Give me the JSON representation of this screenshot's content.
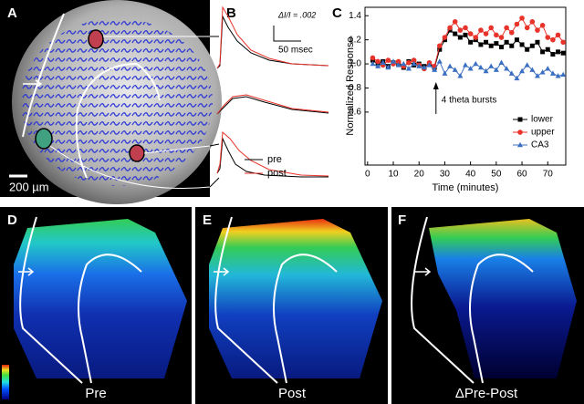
{
  "panels": {
    "a": {
      "label": "A",
      "scale_bar": "200 µm"
    },
    "b": {
      "label": "B",
      "amplitude_scale": "ΔI/I = .002",
      "time_scale": "50 msec",
      "legend": [
        "pre",
        "post"
      ]
    },
    "c": {
      "label": "C"
    },
    "d": {
      "label": "D",
      "caption": "Pre"
    },
    "e": {
      "label": "E",
      "caption": "Post"
    },
    "f": {
      "label": "F",
      "caption": "ΔPre-Post"
    }
  },
  "chart_data": {
    "type": "line",
    "xlabel": "Time (minutes)",
    "ylabel": "Normalized Response",
    "annotation": "4 theta bursts",
    "x": [
      2,
      4,
      6,
      8,
      10,
      12,
      14,
      16,
      18,
      20,
      22,
      24,
      26,
      28,
      30,
      32,
      34,
      36,
      38,
      40,
      42,
      44,
      46,
      48,
      50,
      52,
      54,
      56,
      58,
      60,
      62,
      64,
      66,
      68,
      70,
      72,
      74,
      76
    ],
    "series": [
      {
        "name": "lower",
        "color": "#000000",
        "marker": "square",
        "values": [
          1.03,
          1.0,
          1.02,
          0.98,
          1.01,
          1.0,
          0.97,
          1.02,
          0.99,
          1.0,
          0.98,
          1.0,
          0.97,
          1.12,
          1.2,
          1.28,
          1.25,
          1.22,
          1.24,
          1.18,
          1.2,
          1.16,
          1.18,
          1.15,
          1.17,
          1.14,
          1.18,
          1.15,
          1.2,
          1.16,
          1.12,
          1.15,
          1.18,
          1.1,
          1.12,
          1.08,
          1.1,
          1.09
        ]
      },
      {
        "name": "upper",
        "color": "#e8332a",
        "marker": "circle",
        "values": [
          1.05,
          1.02,
          0.99,
          1.03,
          1.0,
          1.02,
          0.98,
          1.01,
          1.03,
          0.99,
          0.96,
          1.01,
          0.98,
          1.15,
          1.22,
          1.3,
          1.35,
          1.28,
          1.3,
          1.25,
          1.22,
          1.28,
          1.25,
          1.3,
          1.24,
          1.22,
          1.3,
          1.26,
          1.33,
          1.38,
          1.3,
          1.35,
          1.28,
          1.32,
          1.22,
          1.2,
          1.24,
          1.18
        ]
      },
      {
        "name": "CA3",
        "color": "#3b6fc2",
        "marker": "triangle",
        "values": [
          1.0,
          0.98,
          1.01,
          0.97,
          1.02,
          0.99,
          1.0,
          0.96,
          1.0,
          0.98,
          0.97,
          0.99,
          0.95,
          1.02,
          0.92,
          0.98,
          0.95,
          0.9,
          0.99,
          0.96,
          1.0,
          0.97,
          0.94,
          0.98,
          0.95,
          1.01,
          0.96,
          0.92,
          0.88,
          0.94,
          0.99,
          0.95,
          0.9,
          0.93,
          0.96,
          0.92,
          0.9,
          0.91
        ]
      }
    ],
    "xlim": [
      -1,
      77
    ],
    "xticks": [
      0,
      10,
      20,
      30,
      40,
      50,
      60,
      70
    ],
    "ylim": [
      0.16,
      1.47
    ],
    "yticks": [
      0.6,
      0.8,
      {
        "value": 1.0,
        "label": "1.0"
      },
      1.2,
      1.4
    ],
    "legend": "lower right"
  }
}
